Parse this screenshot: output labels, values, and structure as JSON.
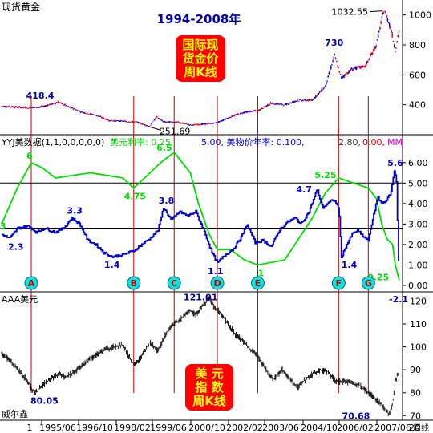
{
  "chart_data": [
    {
      "type": "candlestick",
      "panel_label": "现货黄金",
      "title": "1994-2008年",
      "annotation_box": [
        "国际现",
        "货金价",
        "周K线"
      ],
      "ylim": [
        200,
        1100
      ],
      "y_ticks": [
        400,
        600,
        800,
        1000
      ],
      "x_range": [
        1994.0,
        2008.75
      ],
      "series": [
        {
          "name": "现货黄金",
          "values_weekly_anchor": [
            [
              1994.0,
              390
            ],
            [
              1994.5,
              385
            ],
            [
              1995.0,
              380
            ],
            [
              1995.5,
              385
            ],
            [
              1996.1,
              418
            ],
            [
              1996.5,
              385
            ],
            [
              1997.0,
              350
            ],
            [
              1997.5,
              330
            ],
            [
              1998.0,
              295
            ],
            [
              1998.5,
              290
            ],
            [
              1999.0,
              285
            ],
            [
              1999.5,
              255
            ],
            [
              1999.75,
              320
            ],
            [
              2000.0,
              285
            ],
            [
              2000.5,
              285
            ],
            [
              2001.0,
              265
            ],
            [
              2001.5,
              270
            ],
            [
              2002.0,
              280
            ],
            [
              2002.5,
              320
            ],
            [
              2003.0,
              350
            ],
            [
              2003.5,
              360
            ],
            [
              2004.0,
              410
            ],
            [
              2004.5,
              400
            ],
            [
              2005.0,
              430
            ],
            [
              2005.5,
              430
            ],
            [
              2006.0,
              520
            ],
            [
              2006.35,
              730
            ],
            [
              2006.6,
              580
            ],
            [
              2007.0,
              640
            ],
            [
              2007.5,
              660
            ],
            [
              2007.9,
              800
            ],
            [
              2008.15,
              1010
            ],
            [
              2008.2,
              1032.55
            ],
            [
              2008.45,
              900
            ],
            [
              2008.6,
              760
            ],
            [
              2008.75,
              900
            ]
          ]
        }
      ],
      "annotations": [
        {
          "label": "418.4",
          "x": 1996.1,
          "y": 418.4
        },
        {
          "label": "251.69",
          "x": 1999.5,
          "y": 251.69
        },
        {
          "label": "730",
          "x": 2006.35,
          "y": 730
        },
        {
          "label": "1032.55",
          "x": 2008.2,
          "y": 1032.55
        }
      ]
    },
    {
      "type": "line",
      "panel_label": "YYJ美数据(1,1,0,0,0,0,0)",
      "legend": [
        {
          "text": "美元利率: 0.25,",
          "color": "#00dd00"
        },
        {
          "text": "5.00, 美物价年率: 0.100,",
          "color": "#0000cc"
        },
        {
          "text": "2.80,",
          "color": "#333333"
        },
        {
          "text": "0.00,",
          "color": "#ff0000"
        },
        {
          "text": "MM",
          "color": "#cc00cc"
        }
      ],
      "ylim": [
        0,
        6.5
      ],
      "y_ticks": [
        "0.00",
        "1.00",
        "2.00",
        "3.00",
        "4.00",
        "5.00",
        "6.00"
      ],
      "x_range": [
        1994.0,
        2008.75
      ],
      "reference_lines": [
        5.0,
        2.8
      ],
      "series": [
        {
          "name": "美元利率",
          "color": "#00dd00",
          "points": [
            [
              1994.0,
              3.0
            ],
            [
              1994.6,
              4.8
            ],
            [
              1995.1,
              6.0
            ],
            [
              1995.5,
              5.75
            ],
            [
              1996.0,
              5.25
            ],
            [
              1997.3,
              5.5
            ],
            [
              1998.5,
              5.25
            ],
            [
              1998.9,
              4.75
            ],
            [
              1999.9,
              6.0
            ],
            [
              2000.4,
              6.5
            ],
            [
              2001.0,
              5.5
            ],
            [
              2001.3,
              4.0
            ],
            [
              2001.7,
              2.5
            ],
            [
              2002.0,
              1.75
            ],
            [
              2002.5,
              1.75
            ],
            [
              2003.0,
              1.25
            ],
            [
              2003.5,
              1.0
            ],
            [
              2004.5,
              1.25
            ],
            [
              2005.0,
              2.25
            ],
            [
              2005.5,
              3.25
            ],
            [
              2006.0,
              4.5
            ],
            [
              2006.5,
              5.25
            ],
            [
              2007.6,
              4.75
            ],
            [
              2007.9,
              4.25
            ],
            [
              2008.1,
              3.0
            ],
            [
              2008.3,
              2.25
            ],
            [
              2008.5,
              2.0
            ],
            [
              2008.6,
              1.0
            ],
            [
              2008.75,
              0.25
            ]
          ]
        },
        {
          "name": "美物价年率",
          "color": "#0000cc",
          "points": [
            [
              1994.0,
              2.5
            ],
            [
              1994.3,
              2.3
            ],
            [
              1994.6,
              2.8
            ],
            [
              1995.0,
              2.9
            ],
            [
              1995.3,
              2.6
            ],
            [
              1995.6,
              2.8
            ],
            [
              1996.0,
              2.6
            ],
            [
              1996.3,
              2.8
            ],
            [
              1996.6,
              3.3
            ],
            [
              1996.9,
              3.0
            ],
            [
              1997.2,
              2.2
            ],
            [
              1997.5,
              2.0
            ],
            [
              1997.8,
              1.6
            ],
            [
              1998.1,
              1.4
            ],
            [
              1998.5,
              1.5
            ],
            [
              1998.9,
              1.7
            ],
            [
              1999.2,
              2.0
            ],
            [
              1999.5,
              2.3
            ],
            [
              1999.8,
              2.7
            ],
            [
              2000.0,
              3.8
            ],
            [
              2000.3,
              3.2
            ],
            [
              2000.6,
              3.6
            ],
            [
              2000.9,
              3.4
            ],
            [
              2001.2,
              3.6
            ],
            [
              2001.5,
              2.7
            ],
            [
              2001.8,
              1.6
            ],
            [
              2002.0,
              1.1
            ],
            [
              2002.3,
              1.5
            ],
            [
              2002.6,
              1.8
            ],
            [
              2002.9,
              2.4
            ],
            [
              2003.1,
              3.0
            ],
            [
              2003.4,
              2.1
            ],
            [
              2003.7,
              2.2
            ],
            [
              2004.0,
              1.9
            ],
            [
              2004.3,
              2.7
            ],
            [
              2004.6,
              3.1
            ],
            [
              2004.9,
              3.3
            ],
            [
              2005.1,
              3.0
            ],
            [
              2005.4,
              3.6
            ],
            [
              2005.7,
              4.7
            ],
            [
              2005.9,
              3.8
            ],
            [
              2006.1,
              4.0
            ],
            [
              2006.3,
              4.2
            ],
            [
              2006.5,
              3.8
            ],
            [
              2006.6,
              1.4
            ],
            [
              2006.8,
              2.0
            ],
            [
              2007.0,
              2.5
            ],
            [
              2007.2,
              2.7
            ],
            [
              2007.4,
              2.4
            ],
            [
              2007.6,
              2.2
            ],
            [
              2007.8,
              3.5
            ],
            [
              2007.95,
              4.3
            ],
            [
              2008.1,
              4.0
            ],
            [
              2008.3,
              4.2
            ],
            [
              2008.45,
              4.6
            ],
            [
              2008.55,
              5.6
            ],
            [
              2008.6,
              5.4
            ],
            [
              2008.65,
              5.0
            ],
            [
              2008.7,
              2.0
            ],
            [
              2008.75,
              0.1
            ]
          ]
        }
      ],
      "annotations": [
        {
          "label": "3",
          "x": 1994.05,
          "y": 3.0,
          "color": "#00dd00"
        },
        {
          "label": "6",
          "x": 1995.1,
          "y": 6.0,
          "color": "#00dd00"
        },
        {
          "label": "6.5",
          "x": 2000.4,
          "y": 6.5,
          "color": "#00dd00"
        },
        {
          "label": "4.75",
          "x": 1998.9,
          "y": 4.75,
          "color": "#00dd00"
        },
        {
          "label": "1",
          "x": 2003.5,
          "y": 1.0,
          "color": "#00dd00"
        },
        {
          "label": "5.25",
          "x": 2006.5,
          "y": 5.25,
          "color": "#00dd00"
        },
        {
          "label": "0.25",
          "x": 2008.75,
          "y": 0.25,
          "color": "#00dd00"
        },
        {
          "label": "2.3",
          "x": 1994.3,
          "y": 2.3,
          "color": "#0000cc"
        },
        {
          "label": "3.3",
          "x": 1996.6,
          "y": 3.3,
          "color": "#0000cc"
        },
        {
          "label": "1.4",
          "x": 1998.1,
          "y": 1.4,
          "color": "#0000cc"
        },
        {
          "label": "3.8",
          "x": 2000.0,
          "y": 3.8,
          "color": "#0000cc"
        },
        {
          "label": "1.1",
          "x": 2002.0,
          "y": 1.1,
          "color": "#0000cc"
        },
        {
          "label": "4.7",
          "x": 2005.7,
          "y": 4.7,
          "color": "#0000cc"
        },
        {
          "label": "1.4",
          "x": 2006.6,
          "y": 1.4,
          "color": "#0000cc"
        },
        {
          "label": "5.6",
          "x": 2008.55,
          "y": 5.6,
          "color": "#0000cc"
        }
      ],
      "markers": [
        {
          "label": "A",
          "x": 1995.1
        },
        {
          "label": "B",
          "x": 1998.9
        },
        {
          "label": "C",
          "x": 2000.4
        },
        {
          "label": "D",
          "x": 2002.0
        },
        {
          "label": "E",
          "x": 2003.5
        },
        {
          "label": "F",
          "x": 2006.5
        },
        {
          "label": "G",
          "x": 2007.6
        }
      ]
    },
    {
      "type": "line",
      "panel_label": "AAA美元",
      "side_label": "威尔鑫",
      "annotation_box": [
        "美  元",
        "指  数",
        "周K线"
      ],
      "ylim": [
        68,
        124
      ],
      "y_ticks": [
        70,
        80,
        90,
        100,
        110,
        120
      ],
      "x_range": [
        1994.0,
        2008.75
      ],
      "series": [
        {
          "name": "AAA美元",
          "points": [
            [
              1994.0,
              97
            ],
            [
              1994.3,
              94
            ],
            [
              1994.6,
              90
            ],
            [
              1994.9,
              86
            ],
            [
              1995.1,
              82
            ],
            [
              1995.25,
              80.05
            ],
            [
              1995.5,
              83
            ],
            [
              1995.8,
              86
            ],
            [
              1996.1,
              88
            ],
            [
              1996.4,
              87
            ],
            [
              1996.7,
              89
            ],
            [
              1997.0,
              92
            ],
            [
              1997.3,
              95
            ],
            [
              1997.6,
              97
            ],
            [
              1997.9,
              99
            ],
            [
              1998.2,
              100
            ],
            [
              1998.5,
              101
            ],
            [
              1998.8,
              94
            ],
            [
              1998.95,
              92
            ],
            [
              1999.2,
              96
            ],
            [
              1999.5,
              102
            ],
            [
              1999.8,
              98
            ],
            [
              2000.1,
              106
            ],
            [
              2000.4,
              110
            ],
            [
              2000.7,
              113
            ],
            [
              2000.95,
              116
            ],
            [
              2001.2,
              114
            ],
            [
              2001.45,
              118
            ],
            [
              2001.7,
              121.01
            ],
            [
              2001.9,
              117
            ],
            [
              2002.1,
              115
            ],
            [
              2002.4,
              110
            ],
            [
              2002.7,
              105
            ],
            [
              2003.0,
              102
            ],
            [
              2003.3,
              98
            ],
            [
              2003.5,
              96
            ],
            [
              2003.7,
              92
            ],
            [
              2003.9,
              88
            ],
            [
              2004.1,
              86
            ],
            [
              2004.4,
              90
            ],
            [
              2004.7,
              86
            ],
            [
              2004.95,
              82
            ],
            [
              2005.2,
              85
            ],
            [
              2005.5,
              88
            ],
            [
              2005.8,
              90
            ],
            [
              2006.1,
              89
            ],
            [
              2006.4,
              85
            ],
            [
              2006.7,
              85
            ],
            [
              2007.0,
              84
            ],
            [
              2007.3,
              83
            ],
            [
              2007.6,
              80
            ],
            [
              2007.9,
              77
            ],
            [
              2008.1,
              75
            ],
            [
              2008.25,
              72
            ],
            [
              2008.35,
              70.68
            ],
            [
              2008.5,
              75
            ],
            [
              2008.6,
              85
            ],
            [
              2008.7,
              88
            ],
            [
              2008.75,
              84
            ]
          ]
        }
      ],
      "annotations": [
        {
          "label": "80.05",
          "x": 1995.25,
          "y": 80.05
        },
        {
          "label": "121.01",
          "x": 2001.7,
          "y": 121.01
        },
        {
          "label": "70.68",
          "x": 2008.35,
          "y": 70.68
        }
      ],
      "top_right_label": "-2.1"
    }
  ],
  "x_axis": {
    "ticks": [
      "1",
      "1995/06",
      "1996/10",
      "1998/02",
      "1999/06",
      "2000/10",
      "2002/02",
      "2003/06",
      "2004/10",
      "2006/02",
      "2007/06",
      "20"
    ],
    "unit_label": "周线"
  },
  "colors": {
    "candle_up": "#ff0000",
    "candle_down": "#0000ff",
    "gold_line": "#000000",
    "vertical_markers": "#c00000",
    "annotation_box_bg": "#ff0000",
    "annotation_box_text": "#ffff00",
    "marker_fill": "#00e5e5"
  }
}
